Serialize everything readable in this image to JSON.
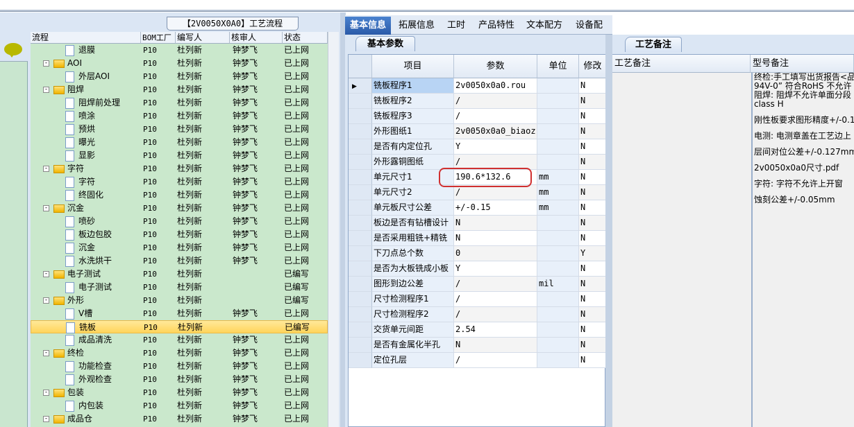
{
  "left": {
    "title": "【2V0050X0A0】工艺流程",
    "columns": [
      "流程",
      "BOM工厂",
      "编写人",
      "核审人",
      "状态"
    ],
    "rows": [
      {
        "level": 2,
        "type": "doc",
        "name": "退膜",
        "bom": "P10",
        "writer": "杜列新",
        "reviewer": "钟梦飞",
        "status": "已上网"
      },
      {
        "level": 1,
        "type": "folder",
        "name": "AOI",
        "bom": "P10",
        "writer": "杜列新",
        "reviewer": "钟梦飞",
        "status": "已上网"
      },
      {
        "level": 2,
        "type": "doc",
        "name": "外层AOI",
        "bom": "P10",
        "writer": "杜列新",
        "reviewer": "钟梦飞",
        "status": "已上网"
      },
      {
        "level": 1,
        "type": "folder",
        "name": "阻焊",
        "bom": "P10",
        "writer": "杜列新",
        "reviewer": "钟梦飞",
        "status": "已上网"
      },
      {
        "level": 2,
        "type": "doc",
        "name": "阻焊前处理",
        "bom": "P10",
        "writer": "杜列新",
        "reviewer": "钟梦飞",
        "status": "已上网"
      },
      {
        "level": 2,
        "type": "doc",
        "name": "喷涂",
        "bom": "P10",
        "writer": "杜列新",
        "reviewer": "钟梦飞",
        "status": "已上网"
      },
      {
        "level": 2,
        "type": "doc",
        "name": "预烘",
        "bom": "P10",
        "writer": "杜列新",
        "reviewer": "钟梦飞",
        "status": "已上网"
      },
      {
        "level": 2,
        "type": "doc",
        "name": "曝光",
        "bom": "P10",
        "writer": "杜列新",
        "reviewer": "钟梦飞",
        "status": "已上网"
      },
      {
        "level": 2,
        "type": "doc",
        "name": "显影",
        "bom": "P10",
        "writer": "杜列新",
        "reviewer": "钟梦飞",
        "status": "已上网"
      },
      {
        "level": 1,
        "type": "folder",
        "name": "字符",
        "bom": "P10",
        "writer": "杜列新",
        "reviewer": "钟梦飞",
        "status": "已上网"
      },
      {
        "level": 2,
        "type": "doc",
        "name": "字符",
        "bom": "P10",
        "writer": "杜列新",
        "reviewer": "钟梦飞",
        "status": "已上网"
      },
      {
        "level": 2,
        "type": "doc",
        "name": "终固化",
        "bom": "P10",
        "writer": "杜列新",
        "reviewer": "钟梦飞",
        "status": "已上网"
      },
      {
        "level": 1,
        "type": "folder",
        "name": "沉金",
        "bom": "P10",
        "writer": "杜列新",
        "reviewer": "钟梦飞",
        "status": "已上网"
      },
      {
        "level": 2,
        "type": "doc",
        "name": "喷砂",
        "bom": "P10",
        "writer": "杜列新",
        "reviewer": "钟梦飞",
        "status": "已上网"
      },
      {
        "level": 2,
        "type": "doc",
        "name": "板边包胶",
        "bom": "P10",
        "writer": "杜列新",
        "reviewer": "钟梦飞",
        "status": "已上网"
      },
      {
        "level": 2,
        "type": "doc",
        "name": "沉金",
        "bom": "P10",
        "writer": "杜列新",
        "reviewer": "钟梦飞",
        "status": "已上网"
      },
      {
        "level": 2,
        "type": "doc",
        "name": "水洗烘干",
        "bom": "P10",
        "writer": "杜列新",
        "reviewer": "钟梦飞",
        "status": "已上网"
      },
      {
        "level": 1,
        "type": "folder",
        "name": "电子测试",
        "bom": "P10",
        "writer": "杜列新",
        "reviewer": "",
        "status": "已编写"
      },
      {
        "level": 2,
        "type": "doc",
        "name": "电子测试",
        "bom": "P10",
        "writer": "杜列新",
        "reviewer": "",
        "status": "已编写"
      },
      {
        "level": 1,
        "type": "folder",
        "name": "外形",
        "bom": "P10",
        "writer": "杜列新",
        "reviewer": "",
        "status": "已编写"
      },
      {
        "level": 2,
        "type": "doc",
        "name": "V槽",
        "bom": "P10",
        "writer": "杜列新",
        "reviewer": "钟梦飞",
        "status": "已上网"
      },
      {
        "level": 2,
        "type": "doc",
        "name": "铣板",
        "bom": "P10",
        "writer": "杜列新",
        "reviewer": "",
        "status": "已编写",
        "selected": true
      },
      {
        "level": 2,
        "type": "doc",
        "name": "成品清洗",
        "bom": "P10",
        "writer": "杜列新",
        "reviewer": "钟梦飞",
        "status": "已上网"
      },
      {
        "level": 1,
        "type": "folder",
        "name": "终检",
        "bom": "P10",
        "writer": "杜列新",
        "reviewer": "钟梦飞",
        "status": "已上网"
      },
      {
        "level": 2,
        "type": "doc",
        "name": "功能检查",
        "bom": "P10",
        "writer": "杜列新",
        "reviewer": "钟梦飞",
        "status": "已上网"
      },
      {
        "level": 2,
        "type": "doc",
        "name": "外观检查",
        "bom": "P10",
        "writer": "杜列新",
        "reviewer": "钟梦飞",
        "status": "已上网"
      },
      {
        "level": 1,
        "type": "folder",
        "name": "包装",
        "bom": "P10",
        "writer": "杜列新",
        "reviewer": "钟梦飞",
        "status": "已上网"
      },
      {
        "level": 2,
        "type": "doc",
        "name": "内包装",
        "bom": "P10",
        "writer": "杜列新",
        "reviewer": "钟梦飞",
        "status": "已上网"
      },
      {
        "level": 1,
        "type": "folder",
        "name": "成品仓",
        "bom": "P10",
        "writer": "杜列新",
        "reviewer": "钟梦飞",
        "status": "已上网"
      }
    ]
  },
  "tabs": [
    "基本信息",
    "拓展信息",
    "工时",
    "产品特性",
    "文本配方",
    "设备配方"
  ],
  "active_tab": 0,
  "params": {
    "subtab": "基本参数",
    "columns": [
      "项目",
      "参数",
      "单位",
      "修改"
    ],
    "rows": [
      [
        "铣板程序1",
        "2v0050x0a0.rou",
        "",
        "N"
      ],
      [
        "铣板程序2",
        "/",
        "",
        "N"
      ],
      [
        "铣板程序3",
        "/",
        "",
        "N"
      ],
      [
        "外形图纸1",
        "2v0050x0a0_biaoz...",
        "",
        "N"
      ],
      [
        "是否有内定位孔",
        "Y",
        "",
        "N"
      ],
      [
        "外形露铜图纸",
        "/",
        "",
        "N"
      ],
      [
        "单元尺寸1",
        "190.6*132.6",
        "mm",
        "N"
      ],
      [
        "单元尺寸2",
        "/",
        "mm",
        "N"
      ],
      [
        "单元板尺寸公差",
        "+/-0.15",
        "mm",
        "N"
      ],
      [
        "板边是否有钻槽设计",
        "N",
        "",
        "N"
      ],
      [
        "是否采用粗铣+精铣",
        "N",
        "",
        "N"
      ],
      [
        "下刀点总个数",
        "0",
        "",
        "Y"
      ],
      [
        "是否为大板铣成小板",
        "Y",
        "",
        "N"
      ],
      [
        "图形到边公差",
        "/",
        "mil",
        "N"
      ],
      [
        "尺寸检测程序1",
        "/",
        "",
        "N"
      ],
      [
        "尺寸检测程序2",
        "/",
        "",
        "N"
      ],
      [
        "交货单元间距",
        "2.54",
        "",
        "N"
      ],
      [
        "是否有金属化半孔",
        "N",
        "",
        "N"
      ],
      [
        "定位孔层",
        "/",
        "",
        "N"
      ]
    ]
  },
  "remarks": {
    "subtab": "工艺备注",
    "col1": "工艺备注",
    "col2": "型号备注",
    "notes": [
      "终检:手工填写出货报告<品",
      "94V-0” 符合RoHS  不允许",
      "阻焊: 阻焊不允许单面分段",
      "class H",
      "刚性板要求图形精度+/-0.1m",
      "电测: 电测章盖在工艺边上",
      "层间对位公差+/-0.127mm",
      "2v0050x0a0尺寸.pdf",
      "字符: 字符不允许上开窗",
      "蚀刻公差+/-0.05mm"
    ]
  }
}
